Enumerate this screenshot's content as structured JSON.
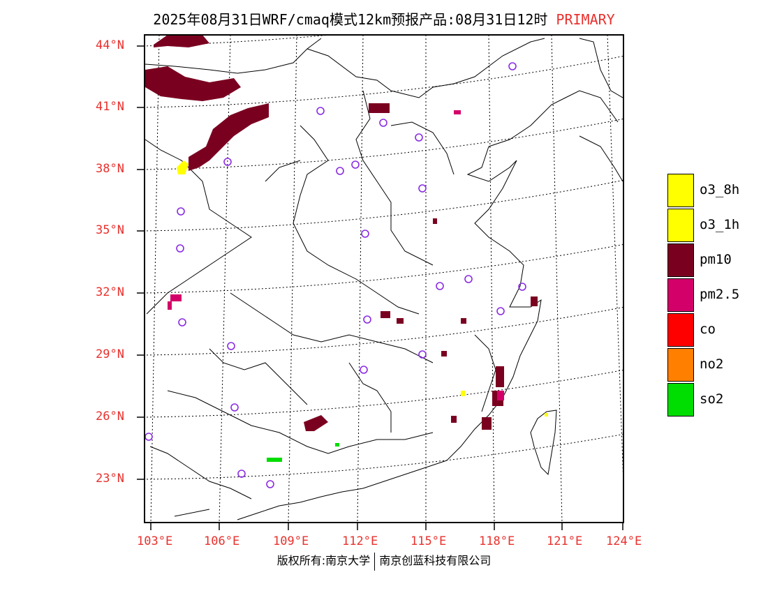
{
  "header": {
    "title": "2025年08月31日WRF/cmaq模式12km预报产品:08月31日12时",
    "title_tag": "PRIMARY",
    "tag_color": "#e8312d"
  },
  "map": {
    "lat_labels": [
      "44°N",
      "41°N",
      "38°N",
      "35°N",
      "32°N",
      "29°N",
      "26°N",
      "23°N"
    ],
    "lon_labels": [
      "103°E",
      "106°E",
      "109°E",
      "112°E",
      "115°E",
      "118°E",
      "121°E",
      "124°E"
    ]
  },
  "legend": {
    "items": [
      {
        "label": "o3_8h",
        "color": "#ffff00"
      },
      {
        "label": "o3_1h",
        "color": "#ffff00"
      },
      {
        "label": "pm10",
        "color": "#7a0020"
      },
      {
        "label": "pm2.5",
        "color": "#d4006a"
      },
      {
        "label": "co",
        "color": "#ff0000"
      },
      {
        "label": "no2",
        "color": "#ff7f00"
      },
      {
        "label": "so2",
        "color": "#00dd00"
      }
    ]
  },
  "footer": {
    "left": "版权所有:南京大学",
    "right": "南京创蓝科技有限公司"
  }
}
